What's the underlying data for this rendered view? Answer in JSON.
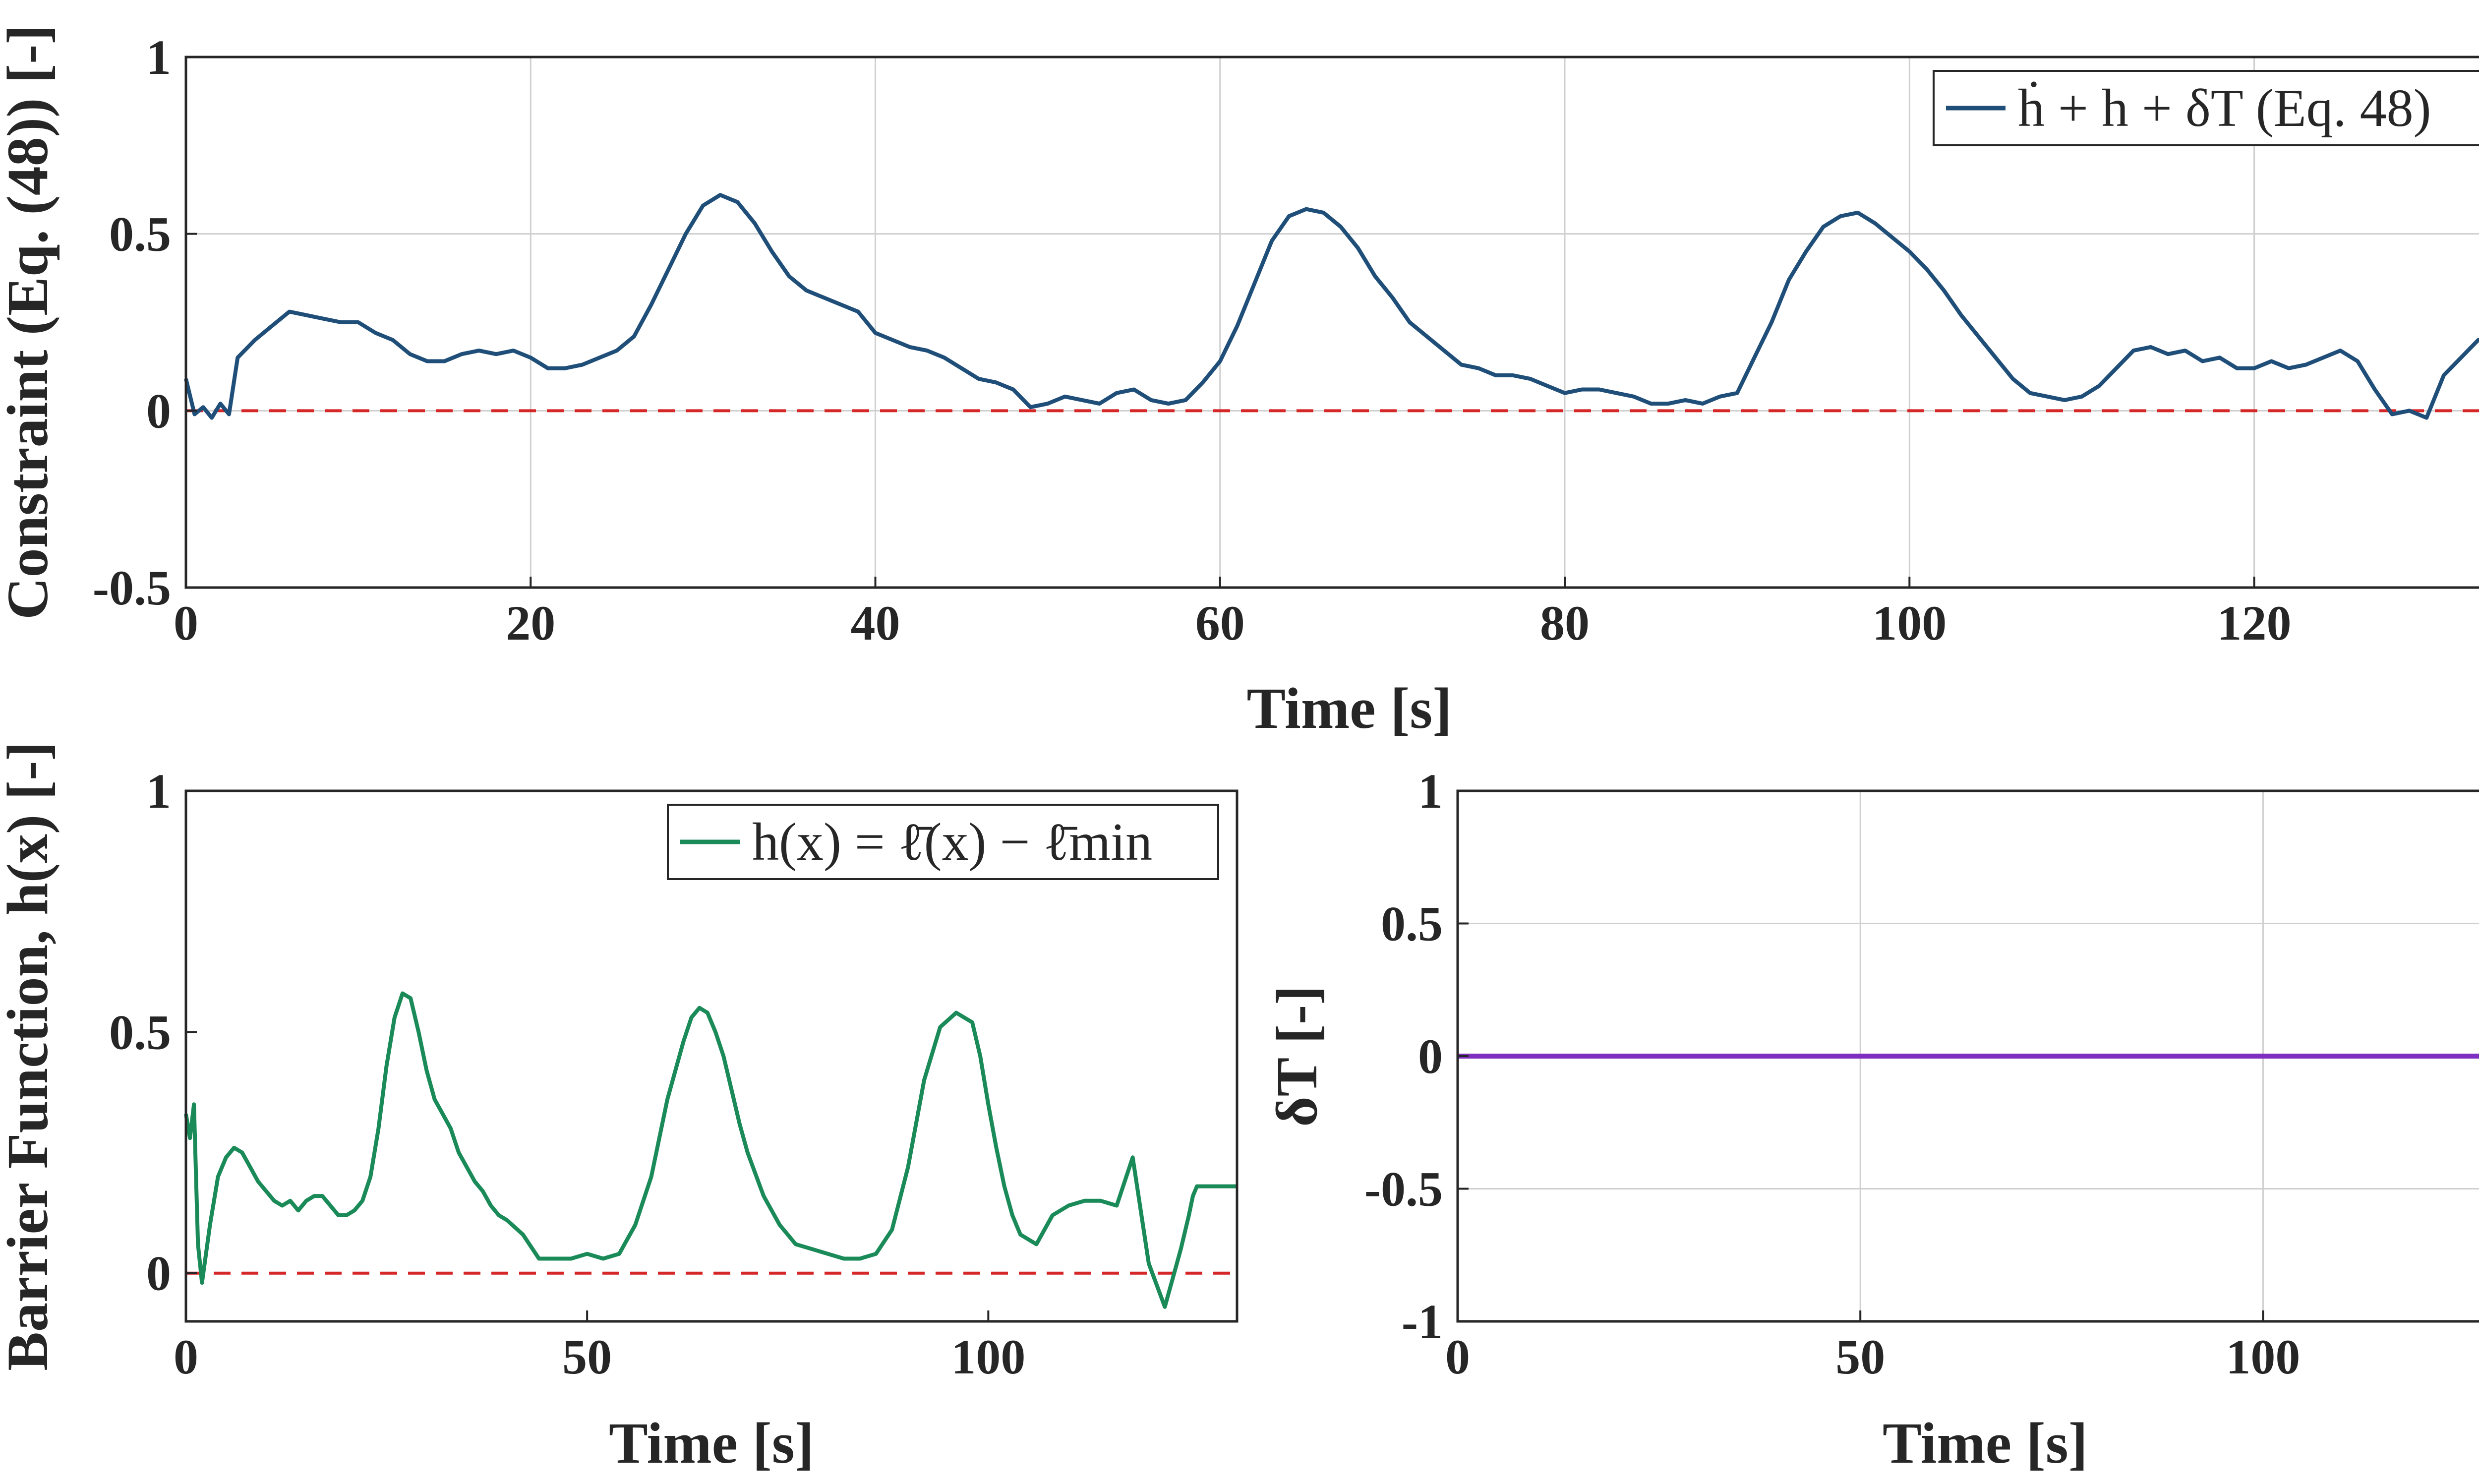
{
  "chart_data": [
    {
      "type": "line",
      "ylabel": "Constraint (Eq. (48)) [-]",
      "xlabel": "Time [s]",
      "xlim": [
        0,
        135
      ],
      "ylim": [
        -0.5,
        1
      ],
      "xticks": [
        "0",
        "20",
        "40",
        "60",
        "80",
        "100",
        "120"
      ],
      "yticks": [
        "-0.5",
        "0",
        "0.5",
        "1"
      ],
      "grid": true,
      "legend_position": "top-right",
      "reference_line": 0,
      "colors": {
        "series": "#1f4e79",
        "reference": "#d62728"
      },
      "series": [
        {
          "name": "ḣ + h + δT (Eq. 48)",
          "x": [
            0,
            0.5,
            1,
            1.5,
            2,
            2.5,
            3,
            4,
            5,
            6,
            7,
            8,
            9,
            10,
            11,
            12,
            13,
            14,
            15,
            16,
            17,
            18,
            19,
            20,
            21,
            22,
            23,
            24,
            25,
            26,
            27,
            28,
            29,
            30,
            31,
            32,
            33,
            34,
            35,
            36,
            37,
            38,
            39,
            40,
            41,
            42,
            43,
            44,
            45,
            46,
            47,
            48,
            49,
            50,
            51,
            52,
            53,
            54,
            55,
            56,
            57,
            58,
            59,
            60,
            61,
            62,
            63,
            64,
            65,
            66,
            67,
            68,
            69,
            70,
            71,
            72,
            73,
            74,
            75,
            76,
            77,
            78,
            79,
            80,
            81,
            82,
            83,
            84,
            85,
            86,
            87,
            88,
            89,
            90,
            91,
            92,
            93,
            94,
            95,
            96,
            97,
            98,
            99,
            100,
            101,
            102,
            103,
            104,
            105,
            106,
            107,
            108,
            109,
            110,
            111,
            112,
            113,
            114,
            115,
            116,
            117,
            118,
            119,
            120,
            121,
            122,
            123,
            124,
            125,
            126,
            127,
            128,
            129,
            130,
            131,
            132,
            133,
            134,
            135
          ],
          "y": [
            0.09,
            -0.01,
            0.01,
            -0.02,
            0.02,
            -0.01,
            0.15,
            0.2,
            0.24,
            0.28,
            0.27,
            0.26,
            0.25,
            0.25,
            0.22,
            0.2,
            0.16,
            0.14,
            0.14,
            0.16,
            0.17,
            0.16,
            0.17,
            0.15,
            0.12,
            0.12,
            0.13,
            0.15,
            0.17,
            0.21,
            0.3,
            0.4,
            0.5,
            0.58,
            0.61,
            0.59,
            0.53,
            0.45,
            0.38,
            0.34,
            0.32,
            0.3,
            0.28,
            0.22,
            0.2,
            0.18,
            0.17,
            0.15,
            0.12,
            0.09,
            0.08,
            0.06,
            0.01,
            0.02,
            0.04,
            0.03,
            0.02,
            0.05,
            0.06,
            0.03,
            0.02,
            0.03,
            0.08,
            0.14,
            0.24,
            0.36,
            0.48,
            0.55,
            0.57,
            0.56,
            0.52,
            0.46,
            0.38,
            0.32,
            0.25,
            0.21,
            0.17,
            0.13,
            0.12,
            0.1,
            0.1,
            0.09,
            0.07,
            0.05,
            0.06,
            0.06,
            0.05,
            0.04,
            0.02,
            0.02,
            0.03,
            0.02,
            0.04,
            0.05,
            0.15,
            0.25,
            0.37,
            0.45,
            0.52,
            0.55,
            0.56,
            0.53,
            0.49,
            0.45,
            0.4,
            0.34,
            0.27,
            0.21,
            0.15,
            0.09,
            0.05,
            0.04,
            0.03,
            0.04,
            0.07,
            0.12,
            0.17,
            0.18,
            0.16,
            0.17,
            0.14,
            0.15,
            0.12,
            0.12,
            0.14,
            0.12,
            0.13,
            0.15,
            0.17,
            0.14,
            0.06,
            -0.01,
            0.0,
            -0.02,
            0.1,
            0.15,
            0.2,
            0.2,
            0.18
          ]
        }
      ]
    },
    {
      "type": "line",
      "ylabel": "Barrier Function, h(x) [-]",
      "xlabel": "Time [s]",
      "xlim": [
        0,
        131
      ],
      "ylim": [
        -0.1,
        1
      ],
      "xticks": [
        "0",
        "50",
        "100"
      ],
      "yticks": [
        "0",
        "0.5",
        "1"
      ],
      "grid": false,
      "legend_position": "top-right",
      "reference_line": 0,
      "colors": {
        "series": "#1a8a58",
        "reference": "#d62728"
      },
      "series": [
        {
          "name": "h(x) = ℓ̄(x) − ℓ̄min",
          "x": [
            0,
            0.5,
            1,
            1.5,
            2,
            3,
            4,
            5,
            6,
            7,
            8,
            9,
            10,
            11,
            12,
            13,
            14,
            15,
            16,
            17,
            18,
            19,
            20,
            21,
            22,
            23,
            24,
            25,
            26,
            27,
            28,
            29,
            30,
            31,
            32,
            33,
            34,
            35,
            36,
            37,
            38,
            39,
            40,
            42,
            44,
            46,
            48,
            50,
            52,
            54,
            56,
            58,
            60,
            62,
            63,
            64,
            65,
            66,
            67,
            68,
            69,
            70,
            72,
            74,
            76,
            78,
            80,
            82,
            84,
            86,
            88,
            90,
            92,
            94,
            96,
            98,
            99,
            100,
            101,
            102,
            103,
            104,
            106,
            108,
            110,
            112,
            114,
            116,
            118,
            120,
            122,
            124,
            125,
            125.5,
            126,
            126.5,
            127,
            128,
            129,
            130,
            131
          ],
          "y": [
            0.33,
            0.28,
            0.35,
            0.06,
            -0.02,
            0.1,
            0.2,
            0.24,
            0.26,
            0.25,
            0.22,
            0.19,
            0.17,
            0.15,
            0.14,
            0.15,
            0.13,
            0.15,
            0.16,
            0.16,
            0.14,
            0.12,
            0.12,
            0.13,
            0.15,
            0.2,
            0.3,
            0.43,
            0.53,
            0.58,
            0.57,
            0.5,
            0.42,
            0.36,
            0.33,
            0.3,
            0.25,
            0.22,
            0.19,
            0.17,
            0.14,
            0.12,
            0.11,
            0.08,
            0.03,
            0.03,
            0.03,
            0.04,
            0.03,
            0.04,
            0.1,
            0.2,
            0.36,
            0.48,
            0.53,
            0.55,
            0.54,
            0.5,
            0.45,
            0.38,
            0.31,
            0.25,
            0.16,
            0.1,
            0.06,
            0.05,
            0.04,
            0.03,
            0.03,
            0.04,
            0.09,
            0.22,
            0.4,
            0.51,
            0.54,
            0.52,
            0.45,
            0.35,
            0.26,
            0.18,
            0.12,
            0.08,
            0.06,
            0.12,
            0.14,
            0.15,
            0.15,
            0.14,
            0.24,
            0.02,
            -0.07,
            0.05,
            0.12,
            0.16,
            0.18,
            0.18,
            0.18,
            0.18,
            0.18,
            0.18,
            0.18
          ]
        }
      ]
    },
    {
      "type": "line",
      "ylabel": "δT [-]",
      "xlabel": "Time [s]",
      "xlim": [
        0,
        131
      ],
      "ylim": [
        -1,
        1
      ],
      "xticks": [
        "0",
        "50",
        "100"
      ],
      "yticks": [
        "-1",
        "-0.5",
        "0",
        "0.5",
        "1"
      ],
      "grid": true,
      "colors": {
        "series": "#7e2fbf"
      },
      "series": [
        {
          "x": [
            0,
            131
          ],
          "y": [
            0,
            0
          ]
        }
      ]
    }
  ]
}
